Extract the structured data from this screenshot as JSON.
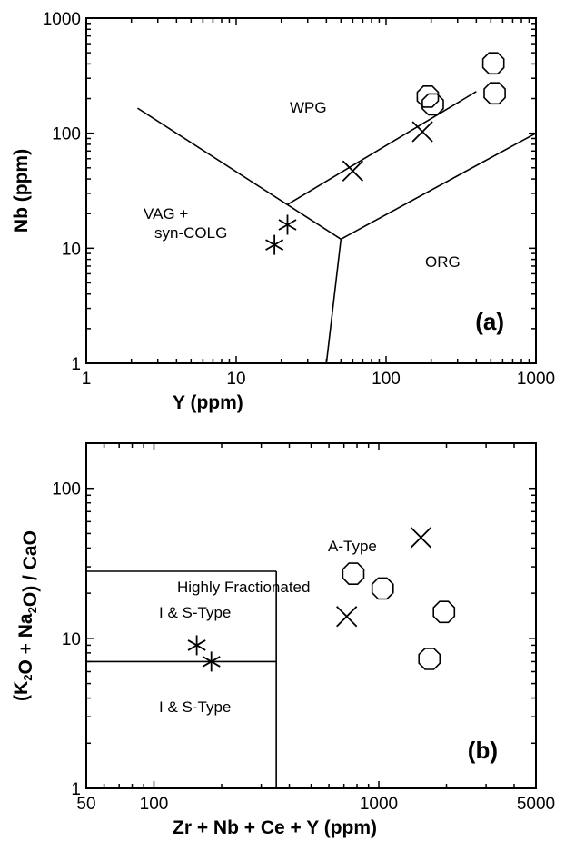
{
  "chart_data": [
    {
      "type": "scatter",
      "panel_label": "(a)",
      "xlabel": "Y  (ppm)",
      "ylabel": "Nb  (ppm)",
      "xscale": "log",
      "yscale": "log",
      "xlim": [
        1,
        1000
      ],
      "ylim": [
        1,
        1000
      ],
      "x_ticks": [
        "1",
        "10",
        "100",
        "1000"
      ],
      "y_ticks": [
        "1",
        "10",
        "100",
        "1000"
      ],
      "region_labels": [
        "WPG",
        "VAG +",
        "syn-COLG",
        "ORG"
      ],
      "boundary_lines": [
        {
          "x": [
            2.2,
            50
          ],
          "y": [
            165,
            12
          ]
        },
        {
          "x": [
            50,
            1000
          ],
          "y": [
            12,
            100
          ]
        },
        {
          "x": [
            50,
            40
          ],
          "y": [
            12,
            1
          ]
        },
        {
          "x": [
            22,
            400
          ],
          "y": [
            24,
            230
          ]
        }
      ],
      "series": [
        {
          "marker": "asterisk",
          "x": [
            18,
            22
          ],
          "y": [
            10.7,
            16
          ]
        },
        {
          "marker": "cross",
          "x": [
            60,
            175
          ],
          "y": [
            47,
            103
          ]
        },
        {
          "marker": "octagon",
          "x": [
            190,
            205,
            520,
            530
          ],
          "y": [
            208,
            178,
            405,
            222
          ]
        }
      ]
    },
    {
      "type": "scatter",
      "panel_label": "(b)",
      "xlabel": "Zr + Nb + Ce + Y  (ppm)",
      "ylabel": "(K2O + Na2O) / CaO",
      "xscale": "log",
      "yscale": "log",
      "xlim": [
        50,
        5000
      ],
      "ylim": [
        1,
        200
      ],
      "x_ticks": [
        "50",
        "100",
        "1000",
        "5000"
      ],
      "y_ticks": [
        "1",
        "10",
        "100"
      ],
      "region_labels": [
        "Highly Fractionated",
        "I & S-Type",
        "I & S-Type",
        "A-Type"
      ],
      "boundary_lines": [
        {
          "x": [
            50,
            350
          ],
          "y": [
            28,
            28
          ]
        },
        {
          "x": [
            350,
            350
          ],
          "y": [
            1,
            28
          ]
        },
        {
          "x": [
            50,
            350
          ],
          "y": [
            7,
            7
          ]
        }
      ],
      "series": [
        {
          "marker": "asterisk",
          "x": [
            155,
            180
          ],
          "y": [
            9,
            7
          ]
        },
        {
          "marker": "cross",
          "x": [
            720,
            1540
          ],
          "y": [
            14,
            47
          ]
        },
        {
          "marker": "octagon",
          "x": [
            770,
            1040,
            1950,
            1680
          ],
          "y": [
            27,
            21.5,
            15,
            7.3
          ]
        }
      ]
    }
  ]
}
